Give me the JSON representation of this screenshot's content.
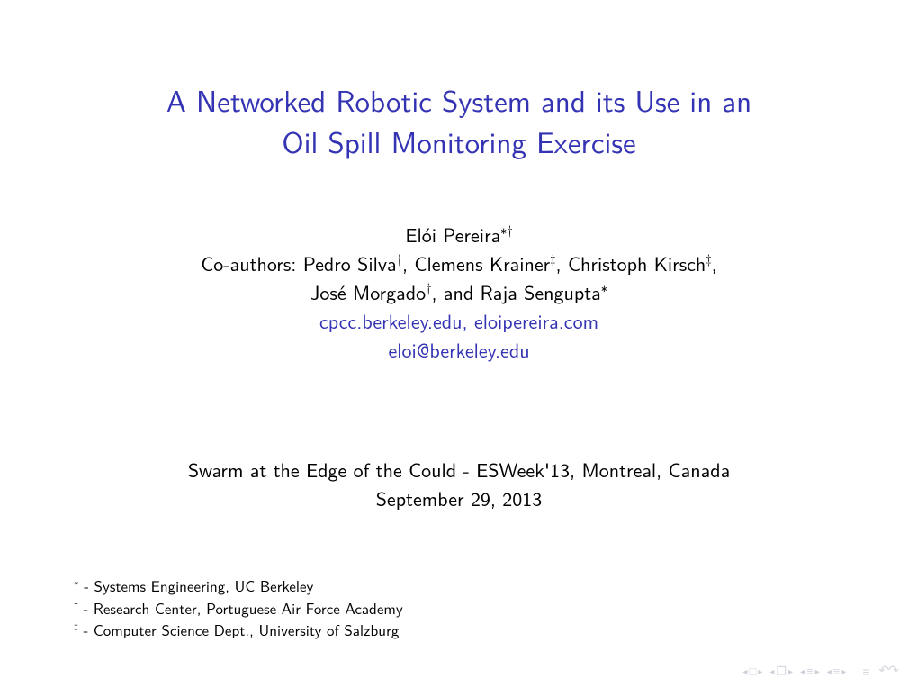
{
  "title": {
    "line1": "A Networked Robotic System and its Use in an",
    "line2": "Oil Spill Monitoring Exercise",
    "color": "#3333b3",
    "fontsize": 33
  },
  "presenter": "Elói Pereira",
  "presenter_marks": "∗†",
  "coauthors_label": "Co-authors:",
  "coauthors": [
    {
      "name": "Pedro Silva",
      "mark": "†"
    },
    {
      "name": "Clemens Krainer",
      "mark": "‡"
    },
    {
      "name": "Christoph Kirsch",
      "mark": "‡"
    },
    {
      "name": "José Morgado",
      "mark": "†"
    },
    {
      "name": "Raja Sengupta",
      "mark": "∗"
    }
  ],
  "links": {
    "site1": "cpcc.berkeley.edu",
    "site2": "eloipereira.com",
    "email": "eloi@berkeley.edu",
    "color": "#3333b3"
  },
  "venue": {
    "line1": "Swarm at the Edge of the Could - ESWeek'13, Montreal, Canada",
    "date": "September 29, 2013"
  },
  "affiliations": [
    {
      "mark": "∗",
      "text": "- Systems Engineering, UC Berkeley"
    },
    {
      "mark": "†",
      "text": "- Research Center, Portuguese Air Force Academy"
    },
    {
      "mark": "‡",
      "text": "- Computer Science Dept., University of Salzburg"
    }
  ],
  "nav_icons": {
    "first": "□",
    "frame": "❐",
    "sub_prev": "≡",
    "sub_next": "≡",
    "bars": "≡",
    "undo": "↶↷",
    "tri_left": "◂",
    "tri_right": "▸"
  },
  "colors": {
    "text": "#000000",
    "link": "#3333b3",
    "nav": "#d6d6de",
    "background": "#ffffff"
  }
}
